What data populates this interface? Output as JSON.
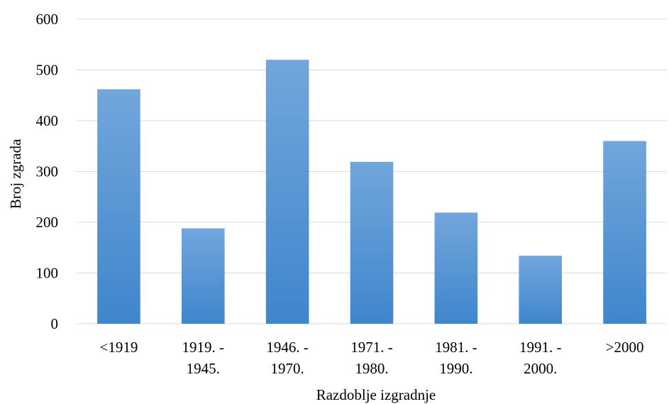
{
  "chart_data": {
    "type": "bar",
    "categories": [
      [
        "<1919"
      ],
      [
        "1919. -",
        "1945."
      ],
      [
        "1946. -",
        "1970."
      ],
      [
        "1971. -",
        "1980."
      ],
      [
        "1981. -",
        "1990."
      ],
      [
        "1991. -",
        "2000."
      ],
      [
        ">2000"
      ]
    ],
    "values": [
      462,
      188,
      520,
      319,
      219,
      134,
      360
    ],
    "xlabel": "Razdoblje izgradnje",
    "ylabel": "Broj zgrada",
    "ylim": [
      0,
      600
    ],
    "yticks": [
      "0",
      "100",
      "200",
      "300",
      "400",
      "500",
      "600"
    ],
    "grid": true,
    "colors": {
      "bar_top": "#72a6dc",
      "bar_bottom": "#3f86cc",
      "grid": "#d9d9d9"
    }
  }
}
